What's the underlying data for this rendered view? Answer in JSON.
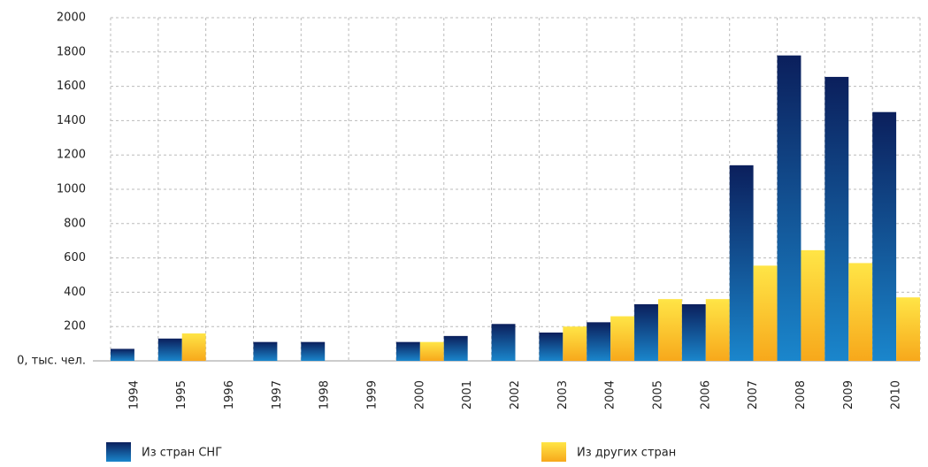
{
  "chart_data": {
    "type": "bar",
    "categories": [
      "1994",
      "1995",
      "1996",
      "1997",
      "1998",
      "1999",
      "2000",
      "2001",
      "2002",
      "2003",
      "2004",
      "2005",
      "2006",
      "2007",
      "2008",
      "2009",
      "2010"
    ],
    "series": [
      {
        "name": "Из стран СНГ",
        "color": "#0b1f5c",
        "values": [
          70,
          130,
          0,
          110,
          110,
          0,
          110,
          145,
          215,
          165,
          225,
          330,
          330,
          1140,
          1780,
          1655,
          1450
        ]
      },
      {
        "name": "Из других стран",
        "color": "#f7a81b",
        "values": [
          0,
          160,
          0,
          0,
          0,
          0,
          110,
          0,
          0,
          200,
          260,
          360,
          360,
          555,
          645,
          570,
          370
        ]
      }
    ],
    "ylim": [
      0,
      2000
    ],
    "yticks": [
      {
        "value": 0,
        "label": "0, тыс. чел."
      },
      200,
      400,
      600,
      800,
      1000,
      1200,
      1400,
      1600,
      1800,
      2000
    ],
    "grid": true
  }
}
